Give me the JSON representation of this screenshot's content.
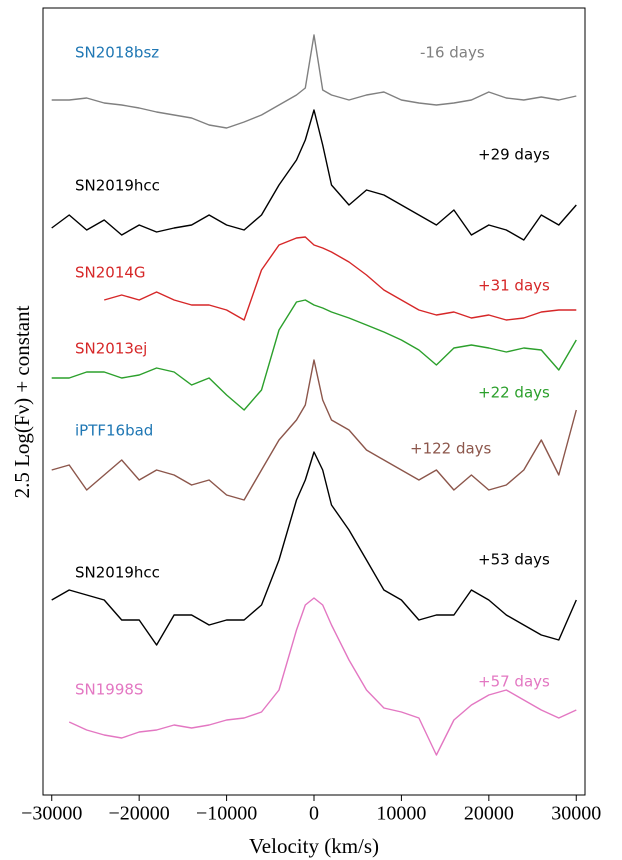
{
  "chart_data": {
    "type": "line",
    "xlabel": "Velocity (km/s)",
    "ylabel": "2.5 Log(Fν) + constant",
    "x": [
      -30000,
      -28000,
      -26000,
      -24000,
      -22000,
      -20000,
      -18000,
      -16000,
      -14000,
      -12000,
      -10000,
      -8000,
      -6000,
      -4000,
      -2000,
      -1000,
      0,
      1000,
      2000,
      4000,
      6000,
      8000,
      10000,
      12000,
      14000,
      16000,
      18000,
      20000,
      22000,
      24000,
      26000,
      28000,
      30000
    ],
    "xlim": [
      -31000,
      31000
    ],
    "xticks": [
      {
        "value": -30000,
        "label": "−30000"
      },
      {
        "value": -20000,
        "label": "−20000"
      },
      {
        "value": -10000,
        "label": "−10000"
      },
      0,
      10000,
      20000,
      30000
    ],
    "ylim": [
      0,
      787
    ],
    "series": [
      {
        "name": "SN2018bsz",
        "phase": "-16 days",
        "color": "#808080",
        "label_color": "#1f77b4",
        "values": [
          695,
          695,
          697,
          692,
          690,
          687,
          683,
          680,
          677,
          670,
          667,
          673,
          680,
          690,
          700,
          707,
          760,
          705,
          700,
          695,
          700,
          703,
          695,
          692,
          690,
          692,
          695,
          703,
          697,
          695,
          698,
          695,
          699
        ]
      },
      {
        "name": "SN2019hcc",
        "phase": "+29 days",
        "color": "#000000",
        "label_color": "#000000",
        "values": [
          567,
          580,
          565,
          575,
          560,
          570,
          563,
          567,
          570,
          580,
          570,
          565,
          580,
          610,
          635,
          655,
          685,
          650,
          610,
          590,
          605,
          600,
          590,
          580,
          570,
          585,
          560,
          570,
          565,
          555,
          580,
          570,
          590
        ]
      },
      {
        "name": "SN2014G",
        "phase": "+31 days",
        "color": "#d62728",
        "label_color": "#d62728",
        "values": [
          null,
          null,
          null,
          495,
          500,
          495,
          503,
          495,
          490,
          490,
          485,
          475,
          525,
          550,
          557,
          558,
          550,
          547,
          543,
          533,
          520,
          505,
          495,
          485,
          480,
          483,
          477,
          480,
          475,
          477,
          483,
          485,
          485
        ]
      },
      {
        "name": "SN2013ej",
        "phase": "+22 days",
        "color": "#2ca02c",
        "label_color": "#d62728",
        "values": [
          417,
          417,
          423,
          423,
          417,
          420,
          427,
          423,
          410,
          417,
          400,
          385,
          405,
          465,
          493,
          495,
          490,
          487,
          483,
          477,
          470,
          463,
          455,
          445,
          430,
          447,
          450,
          447,
          443,
          447,
          445,
          425,
          455
        ]
      },
      {
        "name": "iPTF16bad",
        "phase": "+122 days",
        "color": "#8c564b",
        "label_color": "#1f77b4",
        "values": [
          325,
          330,
          305,
          320,
          335,
          315,
          325,
          320,
          310,
          315,
          300,
          295,
          325,
          355,
          375,
          390,
          435,
          395,
          375,
          365,
          345,
          335,
          325,
          315,
          325,
          305,
          320,
          305,
          310,
          325,
          355,
          320,
          385
        ]
      },
      {
        "name": "SN2019hcc",
        "phase": "+53 days",
        "color": "#000000",
        "label_color": "#000000",
        "values": [
          195,
          205,
          200,
          195,
          175,
          175,
          150,
          180,
          180,
          170,
          175,
          175,
          190,
          235,
          295,
          315,
          343,
          325,
          290,
          265,
          235,
          205,
          195,
          175,
          180,
          180,
          205,
          195,
          180,
          170,
          160,
          155,
          195
        ]
      },
      {
        "name": "SN1998S",
        "phase": "+57 days",
        "color": "#e377c2",
        "label_color": "#e377c2",
        "values": [
          null,
          73,
          65,
          60,
          57,
          63,
          65,
          70,
          67,
          70,
          75,
          77,
          83,
          105,
          165,
          190,
          197,
          190,
          170,
          135,
          105,
          87,
          83,
          77,
          40,
          75,
          90,
          100,
          105,
          95,
          85,
          77,
          85
        ]
      }
    ]
  }
}
